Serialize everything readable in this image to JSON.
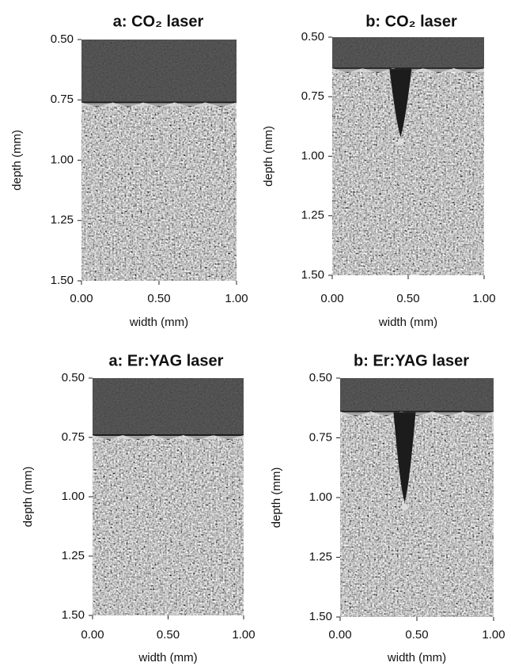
{
  "chart_data": [
    {
      "type": "image",
      "title": "a: CO₂ laser",
      "x_label": "width (mm)",
      "y_label": "depth (mm)",
      "xlim": [
        0,
        1
      ],
      "xticks": [
        {
          "value": 0,
          "label": "0.00"
        },
        {
          "value": 0.5,
          "label": "0.50"
        },
        {
          "value": 1,
          "label": "1.00"
        }
      ],
      "ylim": [
        1.5,
        0.5
      ],
      "yticks": [
        {
          "value": 0.5,
          "label": "0.50"
        },
        {
          "value": 0.75,
          "label": "0.75"
        },
        {
          "value": 1,
          "label": "1.00"
        },
        {
          "value": 1.25,
          "label": "1.25"
        },
        {
          "value": 1.5,
          "label": "1.50"
        }
      ]
    },
    {
      "type": "image",
      "title": "b: CO₂ laser",
      "x_label": "width (mm)",
      "y_label": "depth (mm)",
      "xlim": [
        0,
        1
      ],
      "xticks": [
        {
          "value": 0,
          "label": "0.00"
        },
        {
          "value": 0.5,
          "label": "0.50"
        },
        {
          "value": 1,
          "label": "1.00"
        }
      ],
      "ylim": [
        1.5,
        0.5
      ],
      "yticks": [
        {
          "value": 0.5,
          "label": "0.50"
        },
        {
          "value": 0.75,
          "label": "0.75"
        },
        {
          "value": 1,
          "label": "1.00"
        },
        {
          "value": 1.25,
          "label": "1.25"
        },
        {
          "value": 1.5,
          "label": "1.50"
        }
      ]
    },
    {
      "type": "image",
      "title": "a: Er:YAG laser",
      "x_label": "width (mm)",
      "y_label": "depth (mm)",
      "xlim": [
        0,
        1
      ],
      "xticks": [
        {
          "value": 0,
          "label": "0.00"
        },
        {
          "value": 0.5,
          "label": "0.50"
        },
        {
          "value": 1,
          "label": "1.00"
        }
      ],
      "ylim": [
        1.5,
        0.5
      ],
      "yticks": [
        {
          "value": 0.5,
          "label": "0.50"
        },
        {
          "value": 0.75,
          "label": "0.75"
        },
        {
          "value": 1,
          "label": "1.00"
        },
        {
          "value": 1.25,
          "label": "1.25"
        },
        {
          "value": 1.5,
          "label": "1.50"
        }
      ]
    },
    {
      "type": "image",
      "title": "b: Er:YAG laser",
      "x_label": "width (mm)",
      "y_label": "depth (mm)",
      "xlim": [
        0,
        1
      ],
      "xticks": [
        {
          "value": 0,
          "label": "0.00"
        },
        {
          "value": 0.5,
          "label": "0.50"
        },
        {
          "value": 1,
          "label": "1.00"
        }
      ],
      "ylim": [
        1.5,
        0.5
      ],
      "yticks": [
        {
          "value": 0.5,
          "label": "0.50"
        },
        {
          "value": 0.75,
          "label": "0.75"
        },
        {
          "value": 1,
          "label": "1.00"
        },
        {
          "value": 1.25,
          "label": "1.25"
        },
        {
          "value": 1.5,
          "label": "1.50"
        }
      ]
    }
  ]
}
